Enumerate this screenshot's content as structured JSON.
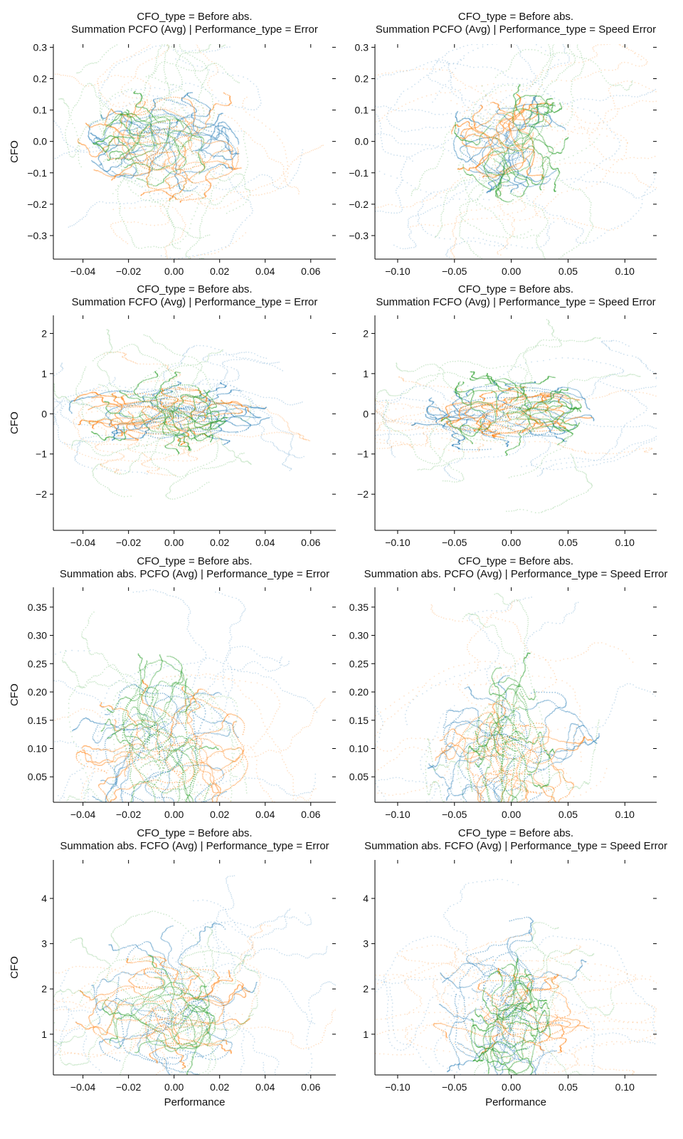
{
  "figure": {
    "ylabel_text": "CFO",
    "xlabel_text": "Performance"
  },
  "palette": {
    "blue": "#1f77b4",
    "orange": "#ff7f0e",
    "green": "#2ca02c"
  },
  "chart_data": [
    {
      "type": "scatter",
      "title_lines": [
        "CFO_type = Before abs.",
        "Summation PCFO (Avg) | Performance_type = Error"
      ],
      "xlabel": "",
      "ylabel": "CFO",
      "xlim": [
        -0.053,
        0.071
      ],
      "ylim": [
        -0.375,
        0.31
      ],
      "xticks": [
        -0.04,
        -0.02,
        0.0,
        0.02,
        0.04,
        0.06
      ],
      "xtick_labels": [
        "−0.04",
        "−0.02",
        "0.00",
        "0.02",
        "0.04",
        "0.06"
      ],
      "yticks": [
        -0.3,
        -0.2,
        -0.1,
        0.0,
        0.1,
        0.2,
        0.3
      ],
      "ytick_labels": [
        "−0.3",
        "−0.2",
        "−0.1",
        "0.0",
        "0.1",
        "0.2",
        "0.3"
      ],
      "grid": false,
      "series": [
        {
          "color": "blue",
          "center": [
            -0.004,
            -0.01
          ],
          "spread": [
            0.014,
            0.07
          ],
          "wide": [
            0.03,
            0.18
          ]
        },
        {
          "color": "orange",
          "center": [
            -0.002,
            0.0
          ],
          "spread": [
            0.016,
            0.075
          ],
          "wide": [
            0.03,
            0.17
          ]
        },
        {
          "color": "green",
          "center": [
            -0.006,
            -0.01
          ],
          "spread": [
            0.011,
            0.07
          ],
          "wide": [
            0.02,
            0.17
          ]
        }
      ]
    },
    {
      "type": "scatter",
      "title_lines": [
        "CFO_type = Before abs.",
        "Summation PCFO (Avg) | Performance_type = Speed Error"
      ],
      "xlabel": "",
      "ylabel": "",
      "xlim": [
        -0.12,
        0.128
      ],
      "ylim": [
        -0.375,
        0.31
      ],
      "xticks": [
        -0.1,
        -0.05,
        0.0,
        0.05,
        0.1
      ],
      "xtick_labels": [
        "−0.10",
        "−0.05",
        "0.00",
        "0.05",
        "0.10"
      ],
      "yticks": [
        -0.3,
        -0.2,
        -0.1,
        0.0,
        0.1,
        0.2,
        0.3
      ],
      "ytick_labels": [
        "−0.3",
        "−0.2",
        "−0.1",
        "0.0",
        "0.1",
        "0.2",
        "0.3"
      ],
      "grid": false,
      "series": [
        {
          "color": "blue",
          "center": [
            0.0,
            -0.01
          ],
          "spread": [
            0.025,
            0.07
          ],
          "wide": [
            0.07,
            0.17
          ]
        },
        {
          "color": "orange",
          "center": [
            0.0,
            0.0
          ],
          "spread": [
            0.022,
            0.06
          ],
          "wide": [
            0.08,
            0.16
          ]
        },
        {
          "color": "green",
          "center": [
            0.0,
            0.0
          ],
          "spread": [
            0.02,
            0.08
          ],
          "wide": [
            0.05,
            0.18
          ]
        }
      ]
    },
    {
      "type": "scatter",
      "title_lines": [
        "CFO_type = Before abs.",
        "Summation FCFO (Avg) | Performance_type = Error"
      ],
      "xlabel": "",
      "ylabel": "CFO",
      "xlim": [
        -0.053,
        0.071
      ],
      "ylim": [
        -2.9,
        2.45
      ],
      "xticks": [
        -0.04,
        -0.02,
        0.0,
        0.02,
        0.04,
        0.06
      ],
      "xtick_labels": [
        "−0.04",
        "−0.02",
        "0.00",
        "0.02",
        "0.04",
        "0.06"
      ],
      "yticks": [
        -2,
        -1,
        0,
        1,
        2
      ],
      "ytick_labels": [
        "−2",
        "−1",
        "0",
        "1",
        "2"
      ],
      "grid": false,
      "series": [
        {
          "color": "blue",
          "center": [
            0.0,
            0.0
          ],
          "spread": [
            0.018,
            0.35
          ],
          "wide": [
            0.03,
            0.8
          ]
        },
        {
          "color": "orange",
          "center": [
            -0.004,
            0.0
          ],
          "spread": [
            0.016,
            0.3
          ],
          "wide": [
            0.03,
            0.6
          ]
        },
        {
          "color": "green",
          "center": [
            -0.006,
            0.0
          ],
          "spread": [
            0.012,
            0.45
          ],
          "wide": [
            0.02,
            1.0
          ]
        }
      ]
    },
    {
      "type": "scatter",
      "title_lines": [
        "CFO_type = Before abs.",
        "Summation FCFO (Avg) | Performance_type = Speed Error"
      ],
      "xlabel": "",
      "ylabel": "",
      "xlim": [
        -0.12,
        0.128
      ],
      "ylim": [
        -2.9,
        2.45
      ],
      "xticks": [
        -0.1,
        -0.05,
        0.0,
        0.05,
        0.1
      ],
      "xtick_labels": [
        "−0.10",
        "−0.05",
        "0.00",
        "0.05",
        "0.10"
      ],
      "yticks": [
        -2,
        -1,
        0,
        1,
        2
      ],
      "ytick_labels": [
        "−2",
        "−1",
        "0",
        "1",
        "2"
      ],
      "grid": false,
      "series": [
        {
          "color": "blue",
          "center": [
            0.0,
            0.0
          ],
          "spread": [
            0.035,
            0.35
          ],
          "wide": [
            0.07,
            0.8
          ]
        },
        {
          "color": "orange",
          "center": [
            0.0,
            0.0
          ],
          "spread": [
            0.03,
            0.25
          ],
          "wide": [
            0.08,
            0.5
          ]
        },
        {
          "color": "green",
          "center": [
            0.0,
            0.0
          ],
          "spread": [
            0.025,
            0.45
          ],
          "wide": [
            0.05,
            1.0
          ]
        }
      ]
    },
    {
      "type": "scatter",
      "title_lines": [
        "CFO_type = Before abs.",
        "Summation abs. PCFO (Avg) | Performance_type = Error"
      ],
      "xlabel": "",
      "ylabel": "CFO",
      "xlim": [
        -0.053,
        0.071
      ],
      "ylim": [
        0.005,
        0.385
      ],
      "xticks": [
        -0.04,
        -0.02,
        0.0,
        0.02,
        0.04,
        0.06
      ],
      "xtick_labels": [
        "−0.04",
        "−0.02",
        "0.00",
        "0.02",
        "0.04",
        "0.06"
      ],
      "yticks": [
        0.05,
        0.1,
        0.15,
        0.2,
        0.25,
        0.3,
        0.35
      ],
      "ytick_labels": [
        "0.05",
        "0.10",
        "0.15",
        "0.20",
        "0.25",
        "0.30",
        "0.35"
      ],
      "grid": false,
      "series": [
        {
          "color": "blue",
          "center": [
            -0.004,
            0.1
          ],
          "spread": [
            0.016,
            0.06
          ],
          "wide": [
            0.03,
            0.12
          ]
        },
        {
          "color": "orange",
          "center": [
            -0.002,
            0.09
          ],
          "spread": [
            0.016,
            0.05
          ],
          "wide": [
            0.03,
            0.12
          ]
        },
        {
          "color": "green",
          "center": [
            -0.006,
            0.1
          ],
          "spread": [
            0.011,
            0.07
          ],
          "wide": [
            0.02,
            0.12
          ]
        }
      ]
    },
    {
      "type": "scatter",
      "title_lines": [
        "CFO_type = Before abs.",
        "Summation abs. PCFO (Avg) | Performance_type = Speed Error"
      ],
      "xlabel": "",
      "ylabel": "",
      "xlim": [
        -0.12,
        0.128
      ],
      "ylim": [
        0.005,
        0.385
      ],
      "xticks": [
        -0.1,
        -0.05,
        0.0,
        0.05,
        0.1
      ],
      "xtick_labels": [
        "−0.10",
        "−0.05",
        "0.00",
        "0.05",
        "0.10"
      ],
      "yticks": [
        0.05,
        0.1,
        0.15,
        0.2,
        0.25,
        0.3,
        0.35
      ],
      "ytick_labels": [
        "0.05",
        "0.10",
        "0.15",
        "0.20",
        "0.25",
        "0.30",
        "0.35"
      ],
      "grid": false,
      "series": [
        {
          "color": "blue",
          "center": [
            0.0,
            0.09
          ],
          "spread": [
            0.03,
            0.06
          ],
          "wide": [
            0.07,
            0.12
          ]
        },
        {
          "color": "orange",
          "center": [
            0.0,
            0.08
          ],
          "spread": [
            0.03,
            0.05
          ],
          "wide": [
            0.08,
            0.12
          ]
        },
        {
          "color": "green",
          "center": [
            0.0,
            0.1
          ],
          "spread": [
            0.015,
            0.07
          ],
          "wide": [
            0.03,
            0.12
          ]
        }
      ]
    },
    {
      "type": "scatter",
      "title_lines": [
        "CFO_type = Before abs.",
        "Summation abs. FCFO (Avg) | Performance_type = Error"
      ],
      "xlabel": "Performance",
      "ylabel": "CFO",
      "xlim": [
        -0.053,
        0.071
      ],
      "ylim": [
        0.1,
        4.85
      ],
      "xticks": [
        -0.04,
        -0.02,
        0.0,
        0.02,
        0.04,
        0.06
      ],
      "xtick_labels": [
        "−0.04",
        "−0.02",
        "0.00",
        "0.02",
        "0.04",
        "0.06"
      ],
      "yticks": [
        1,
        2,
        3,
        4
      ],
      "ytick_labels": [
        "1",
        "2",
        "3",
        "4"
      ],
      "grid": false,
      "series": [
        {
          "color": "blue",
          "center": [
            0.0,
            1.6
          ],
          "spread": [
            0.016,
            0.8
          ],
          "wide": [
            0.03,
            1.3
          ]
        },
        {
          "color": "orange",
          "center": [
            -0.004,
            1.5
          ],
          "spread": [
            0.016,
            0.5
          ],
          "wide": [
            0.035,
            0.9
          ]
        },
        {
          "color": "green",
          "center": [
            -0.006,
            1.3
          ],
          "spread": [
            0.011,
            0.6
          ],
          "wide": [
            0.02,
            1.0
          ]
        }
      ]
    },
    {
      "type": "scatter",
      "title_lines": [
        "CFO_type = Before abs.",
        "Summation abs. FCFO (Avg) | Performance_type = Speed Error"
      ],
      "xlabel": "Performance",
      "ylabel": "",
      "xlim": [
        -0.12,
        0.128
      ],
      "ylim": [
        0.1,
        4.85
      ],
      "xticks": [
        -0.1,
        -0.05,
        0.0,
        0.05,
        0.1
      ],
      "xtick_labels": [
        "−0.10",
        "−0.05",
        "0.00",
        "0.05",
        "0.10"
      ],
      "yticks": [
        1,
        2,
        3,
        4
      ],
      "ytick_labels": [
        "1",
        "2",
        "3",
        "4"
      ],
      "grid": false,
      "series": [
        {
          "color": "blue",
          "center": [
            0.0,
            1.6
          ],
          "spread": [
            0.03,
            0.8
          ],
          "wide": [
            0.07,
            1.3
          ]
        },
        {
          "color": "orange",
          "center": [
            0.0,
            1.5
          ],
          "spread": [
            0.035,
            0.4
          ],
          "wide": [
            0.09,
            0.7
          ]
        },
        {
          "color": "green",
          "center": [
            0.0,
            1.2
          ],
          "spread": [
            0.015,
            0.6
          ],
          "wide": [
            0.04,
            1.0
          ]
        }
      ]
    }
  ]
}
